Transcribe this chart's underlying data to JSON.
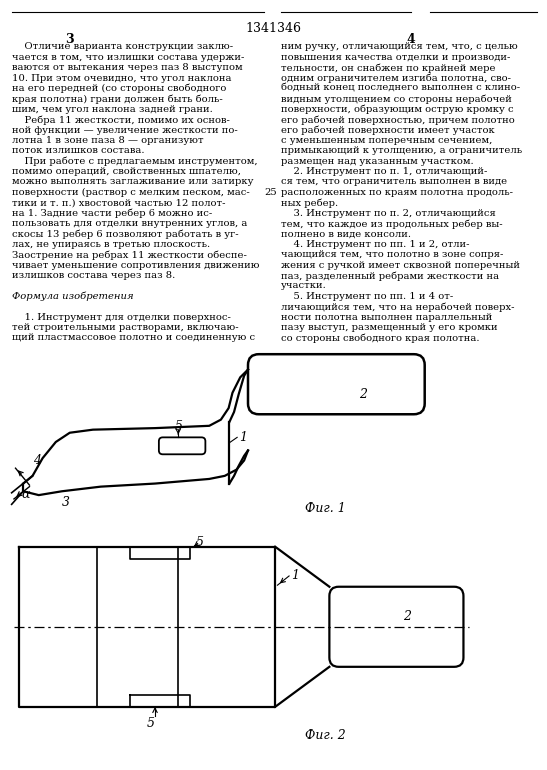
{
  "page_number": "1341346",
  "col_left_num": "3",
  "col_right_num": "4",
  "background": "#ffffff",
  "line_color": "#000000",
  "text_color": "#000000",
  "fig1_label": "Фиг. 1",
  "fig2_label": "Фиг. 2"
}
